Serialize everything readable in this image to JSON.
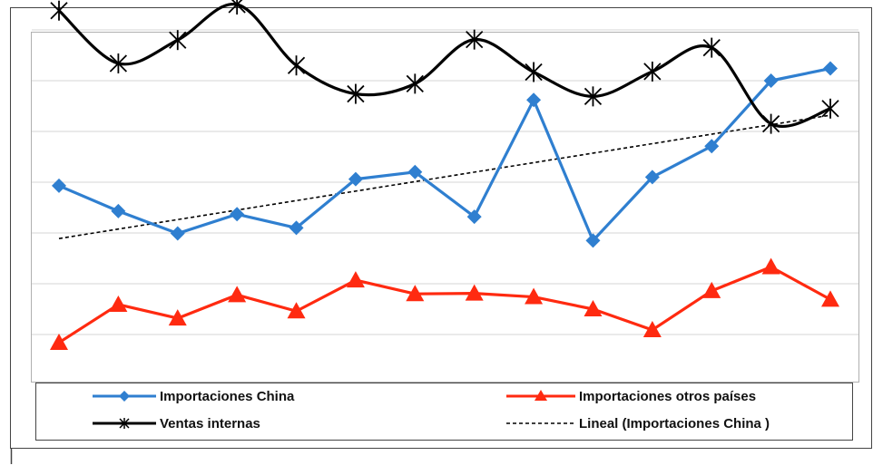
{
  "chart_data": {
    "type": "line",
    "title": "",
    "xlabel": "",
    "ylabel": "",
    "x": [
      1,
      2,
      3,
      4,
      5,
      6,
      7,
      8,
      9,
      10,
      11,
      12,
      13,
      14
    ],
    "ylim": [
      0,
      8
    ],
    "grid": true,
    "legend_position": "bottom",
    "series": [
      {
        "name": "Importaciones China",
        "color": "#2f7fd0",
        "marker": "diamond",
        "values": [
          3.93,
          3.43,
          2.99,
          3.37,
          3.1,
          4.06,
          4.2,
          3.32,
          5.62,
          2.85,
          4.1,
          4.71,
          6.0,
          6.24
        ]
      },
      {
        "name": "Importaciones otros países",
        "color": "#ff2a10",
        "marker": "triangle",
        "values": [
          0.84,
          1.59,
          1.32,
          1.78,
          1.46,
          2.07,
          1.8,
          1.81,
          1.74,
          1.5,
          1.09,
          1.86,
          2.33,
          1.69
        ]
      },
      {
        "name": "Ventas internas",
        "color": "#000000",
        "marker": "star",
        "values": [
          7.38,
          6.34,
          6.8,
          7.5,
          6.3,
          5.74,
          5.94,
          6.81,
          6.17,
          5.69,
          6.18,
          6.65,
          5.15,
          5.45
        ]
      },
      {
        "name": "Lineal (Importaciones China )",
        "color": "#000000",
        "style": "dashed",
        "x": [
          1,
          14
        ],
        "values": [
          2.89,
          5.32
        ]
      }
    ]
  }
}
